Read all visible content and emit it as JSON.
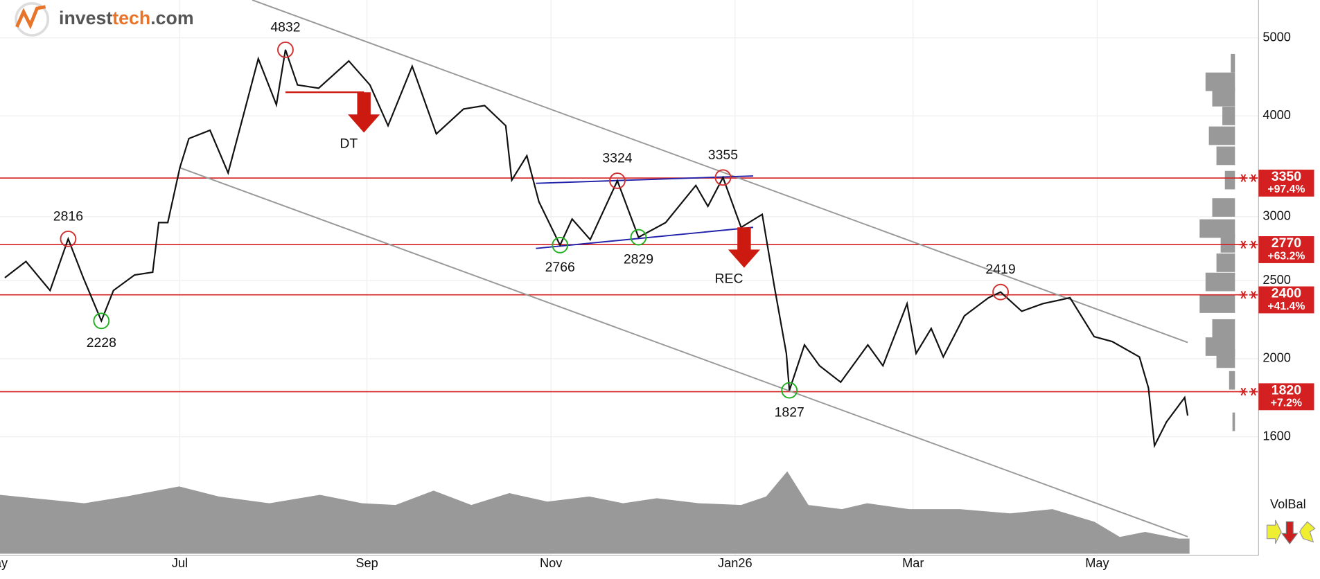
{
  "logo": [
    "invest",
    "tech",
    ".com"
  ],
  "chart_data": {
    "type": "line",
    "color": "#111111",
    "log_scale": true,
    "grid": true,
    "x": [
      3,
      10,
      18,
      24,
      29,
      35,
      39,
      46,
      52,
      54,
      57,
      61,
      64,
      71,
      77,
      82,
      87,
      93,
      96,
      100,
      107,
      117,
      124,
      130,
      138,
      146,
      155,
      162,
      169,
      171,
      176,
      180,
      187,
      191,
      197,
      206,
      213,
      222,
      232,
      236,
      241,
      247,
      254,
      258,
      262,
      263,
      268,
      273,
      280,
      289,
      294,
      302,
      305,
      310,
      314,
      321,
      329,
      333,
      340,
      347,
      356,
      364,
      370,
      379,
      382,
      384,
      388,
      394,
      395
    ],
    "values": [
      2520,
      2640,
      2430,
      2816,
      2520,
      2228,
      2430,
      2540,
      2560,
      2950,
      2950,
      3450,
      3750,
      3840,
      3400,
      4000,
      4710,
      4130,
      4832,
      4370,
      4330,
      4680,
      4370,
      3890,
      4610,
      3800,
      4080,
      4120,
      3890,
      3330,
      3570,
      3130,
      2766,
      2980,
      2810,
      3324,
      2829,
      2950,
      3280,
      3090,
      3355,
      2910,
      3020,
      2460,
      2030,
      1827,
      2080,
      1960,
      1870,
      2080,
      1960,
      2340,
      2030,
      2180,
      2010,
      2260,
      2380,
      2419,
      2290,
      2340,
      2380,
      2130,
      2100,
      2010,
      1840,
      1560,
      1670,
      1790,
      1700
    ],
    "xlim": [
      1.4,
      397
    ],
    "xticks": [
      {
        "value": 0,
        "label": "May"
      },
      {
        "value": 61,
        "label": "Jul"
      },
      {
        "value": 123,
        "label": "Sep"
      },
      {
        "value": 184,
        "label": "Nov"
      },
      {
        "value": 245,
        "label": "Jan26"
      },
      {
        "value": 304,
        "label": "Mar"
      },
      {
        "value": 365,
        "label": "May"
      }
    ],
    "ylim": [
      1450,
      5570
    ],
    "yticks": [
      1600,
      2000,
      2500,
      3000,
      4000,
      5000
    ],
    "pivots": [
      {
        "x": 24,
        "value": 2816,
        "color": "#d03030"
      },
      {
        "x": 35,
        "value": 2228,
        "color": "#22b022"
      },
      {
        "x": 96,
        "value": 4832,
        "color": "#d03030"
      },
      {
        "x": 187,
        "value": 2766,
        "color": "#22b022"
      },
      {
        "x": 206,
        "value": 3324,
        "color": "#d03030"
      },
      {
        "x": 213,
        "value": 2829,
        "color": "#22b022"
      },
      {
        "x": 241,
        "value": 3355,
        "color": "#d03030"
      },
      {
        "x": 263,
        "value": 1827,
        "color": "#22b022"
      },
      {
        "x": 333,
        "value": 2419,
        "color": "#d03030"
      }
    ],
    "levels": [
      {
        "value": 3350,
        "change": "+97.4%"
      },
      {
        "value": 2770,
        "change": "+63.2%"
      },
      {
        "value": 2400,
        "change": "+41.4%"
      },
      {
        "value": 1820,
        "change": "+7.2%"
      }
    ],
    "level_color": "#d42020",
    "trend_lines": [
      {
        "x": [
          85,
          395
        ],
        "y": [
          5570,
          2095
        ],
        "color": "#999999"
      },
      {
        "x": [
          61,
          395
        ],
        "y": [
          3450,
          1203
        ],
        "color": "#999999"
      },
      {
        "x": [
          179,
          251
        ],
        "y": [
          3300,
          3370
        ],
        "color": "#2222aa"
      },
      {
        "x": [
          179,
          251
        ],
        "y": [
          2740,
          2910
        ],
        "color": "#2222aa"
      }
    ],
    "signals": [
      {
        "label": "DT",
        "x": 122,
        "price": 4280,
        "from_x": 96
      },
      {
        "label": "REC",
        "x": 248,
        "price": 2910
      }
    ],
    "volume": {
      "x": [
        1.4,
        29.3,
        43.2,
        60.8,
        73.9,
        90.7,
        107.4,
        121.4,
        132.5,
        145.1,
        157.6,
        170.2,
        182.8,
        196.7,
        207.9,
        219.1,
        233,
        247,
        255.3,
        262.3,
        269.3,
        280.4,
        288.8,
        302.7,
        319.5,
        336.2,
        350.2,
        364.1,
        372.5,
        380.9,
        392,
        395.6
      ],
      "values": [
        70,
        60,
        68,
        80,
        68,
        60,
        70,
        60,
        58,
        75,
        58,
        72,
        62,
        68,
        60,
        66,
        60,
        58,
        68,
        98,
        58,
        53,
        60,
        53,
        53,
        48,
        53,
        38,
        20,
        26,
        18,
        18
      ],
      "color": "#999999"
    },
    "volume_profile": {
      "prices": [
        4650,
        4410,
        4220,
        4000,
        3780,
        3570,
        3330,
        3080,
        2900,
        2780,
        2630,
        2490,
        2340,
        2180,
        2070,
        2000,
        1880,
        1670
      ],
      "values": [
        5,
        35,
        27,
        15,
        31,
        22,
        12,
        27,
        42,
        17,
        22,
        35,
        42,
        27,
        35,
        22,
        7,
        3
      ],
      "color": "#999999"
    },
    "volbal_label": "VolBal"
  }
}
